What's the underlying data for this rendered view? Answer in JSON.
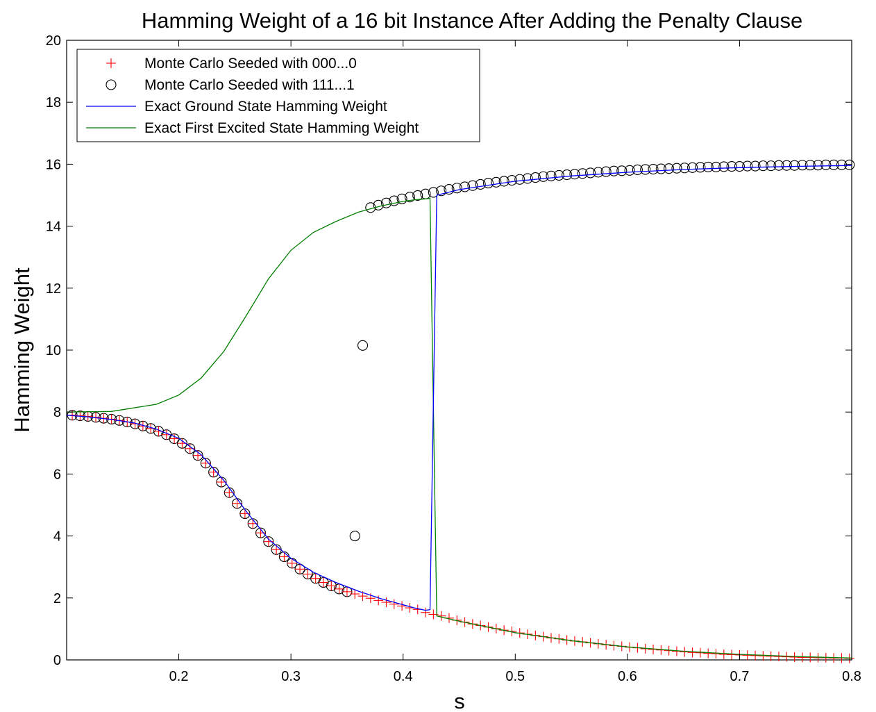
{
  "chart_data": {
    "type": "line",
    "title": "Hamming Weight of a 16 bit Instance After Adding the Penalty Clause",
    "xlabel": "s",
    "ylabel": "Hamming Weight",
    "xlim": [
      0.1,
      0.8
    ],
    "ylim": [
      0,
      20
    ],
    "xticks": [
      0.2,
      0.3,
      0.4,
      0.5,
      0.6,
      0.7,
      0.8
    ],
    "yticks": [
      0,
      2,
      4,
      6,
      8,
      10,
      12,
      14,
      16,
      18,
      20
    ],
    "grid": false,
    "legend_position": "top-left",
    "series": [
      {
        "name": "Monte Carlo Seeded with 000...0",
        "style": "marker-plus",
        "color": "#ff0000",
        "x": [
          0.105,
          0.112,
          0.119,
          0.126,
          0.133,
          0.14,
          0.147,
          0.154,
          0.161,
          0.168,
          0.175,
          0.182,
          0.189,
          0.196,
          0.203,
          0.21,
          0.217,
          0.224,
          0.231,
          0.238,
          0.245,
          0.252,
          0.259,
          0.266,
          0.273,
          0.28,
          0.287,
          0.294,
          0.301,
          0.308,
          0.315,
          0.322,
          0.329,
          0.336,
          0.343,
          0.35,
          0.357,
          0.364,
          0.371,
          0.378,
          0.385,
          0.392,
          0.399,
          0.406,
          0.413,
          0.42,
          0.427,
          0.434,
          0.441,
          0.448,
          0.455,
          0.462,
          0.469,
          0.476,
          0.483,
          0.49,
          0.497,
          0.504,
          0.511,
          0.518,
          0.525,
          0.532,
          0.539,
          0.546,
          0.553,
          0.56,
          0.567,
          0.574,
          0.581,
          0.588,
          0.595,
          0.602,
          0.609,
          0.616,
          0.623,
          0.63,
          0.637,
          0.644,
          0.651,
          0.658,
          0.665,
          0.672,
          0.679,
          0.686,
          0.693,
          0.7,
          0.707,
          0.714,
          0.721,
          0.728,
          0.735,
          0.742,
          0.749,
          0.756,
          0.763,
          0.77,
          0.777,
          0.784,
          0.791,
          0.798
        ],
        "y": [
          7.9,
          7.88,
          7.86,
          7.83,
          7.8,
          7.77,
          7.73,
          7.68,
          7.62,
          7.55,
          7.47,
          7.38,
          7.27,
          7.14,
          6.99,
          6.82,
          6.6,
          6.35,
          6.06,
          5.74,
          5.4,
          5.05,
          4.72,
          4.4,
          4.1,
          3.82,
          3.56,
          3.33,
          3.12,
          2.93,
          2.77,
          2.63,
          2.5,
          2.39,
          2.29,
          2.2,
          2.13,
          2.06,
          1.99,
          1.92,
          1.86,
          1.8,
          1.74,
          1.68,
          1.63,
          1.53,
          1.47,
          1.42,
          1.35,
          1.28,
          1.22,
          1.16,
          1.11,
          1.06,
          1.01,
          0.96,
          0.92,
          0.87,
          0.83,
          0.79,
          0.75,
          0.71,
          0.68,
          0.64,
          0.61,
          0.58,
          0.55,
          0.52,
          0.49,
          0.46,
          0.44,
          0.41,
          0.39,
          0.36,
          0.34,
          0.32,
          0.3,
          0.28,
          0.26,
          0.24,
          0.23,
          0.21,
          0.2,
          0.18,
          0.17,
          0.16,
          0.15,
          0.14,
          0.13,
          0.12,
          0.11,
          0.1,
          0.09,
          0.08,
          0.08,
          0.07,
          0.07,
          0.06,
          0.06,
          0.05
        ]
      },
      {
        "name": "Monte Carlo Seeded with 111...1",
        "style": "marker-circle",
        "color": "#000000",
        "x": [
          0.105,
          0.112,
          0.119,
          0.126,
          0.133,
          0.14,
          0.147,
          0.154,
          0.161,
          0.168,
          0.175,
          0.182,
          0.189,
          0.196,
          0.203,
          0.21,
          0.217,
          0.224,
          0.231,
          0.238,
          0.245,
          0.252,
          0.259,
          0.266,
          0.273,
          0.28,
          0.287,
          0.294,
          0.301,
          0.308,
          0.315,
          0.322,
          0.329,
          0.336,
          0.343,
          0.35,
          0.357,
          0.364,
          0.371,
          0.378,
          0.385,
          0.392,
          0.399,
          0.406,
          0.413,
          0.42,
          0.427,
          0.434,
          0.441,
          0.448,
          0.455,
          0.462,
          0.469,
          0.476,
          0.483,
          0.49,
          0.497,
          0.504,
          0.511,
          0.518,
          0.525,
          0.532,
          0.539,
          0.546,
          0.553,
          0.56,
          0.567,
          0.574,
          0.581,
          0.588,
          0.595,
          0.602,
          0.609,
          0.616,
          0.623,
          0.63,
          0.637,
          0.644,
          0.651,
          0.658,
          0.665,
          0.672,
          0.679,
          0.686,
          0.693,
          0.7,
          0.707,
          0.714,
          0.721,
          0.728,
          0.735,
          0.742,
          0.749,
          0.756,
          0.763,
          0.77,
          0.777,
          0.784,
          0.791,
          0.798
        ],
        "y": [
          7.9,
          7.88,
          7.86,
          7.83,
          7.8,
          7.77,
          7.73,
          7.68,
          7.62,
          7.55,
          7.47,
          7.38,
          7.27,
          7.14,
          6.99,
          6.82,
          6.6,
          6.35,
          6.06,
          5.74,
          5.4,
          5.05,
          4.72,
          4.4,
          4.1,
          3.82,
          3.56,
          3.33,
          3.12,
          2.93,
          2.77,
          2.63,
          2.5,
          2.39,
          2.29,
          2.2,
          4.0,
          10.15,
          14.6,
          14.68,
          14.75,
          14.82,
          14.88,
          14.94,
          14.99,
          15.04,
          15.09,
          15.14,
          15.19,
          15.23,
          15.27,
          15.31,
          15.35,
          15.39,
          15.42,
          15.45,
          15.48,
          15.51,
          15.54,
          15.57,
          15.6,
          15.62,
          15.64,
          15.66,
          15.68,
          15.7,
          15.72,
          15.74,
          15.76,
          15.78,
          15.79,
          15.8,
          15.82,
          15.83,
          15.84,
          15.85,
          15.86,
          15.87,
          15.88,
          15.89,
          15.9,
          15.91,
          15.91,
          15.92,
          15.93,
          15.93,
          15.94,
          15.94,
          15.95,
          15.95,
          15.96,
          15.96,
          15.96,
          15.97,
          15.97,
          15.97,
          15.98,
          15.98,
          15.98,
          15.98
        ]
      },
      {
        "name": "Exact Ground State Hamming Weight",
        "style": "line",
        "color": "#0000ff",
        "x": [
          0.1,
          0.12,
          0.14,
          0.16,
          0.18,
          0.2,
          0.22,
          0.24,
          0.26,
          0.28,
          0.3,
          0.32,
          0.34,
          0.36,
          0.38,
          0.4,
          0.41,
          0.42,
          0.424,
          0.43,
          0.45,
          0.5,
          0.55,
          0.6,
          0.65,
          0.7,
          0.75,
          0.8
        ],
        "y": [
          7.9,
          7.84,
          7.76,
          7.65,
          7.45,
          7.15,
          6.62,
          5.8,
          4.8,
          3.9,
          3.28,
          2.83,
          2.5,
          2.22,
          1.98,
          1.78,
          1.68,
          1.6,
          1.62,
          15.0,
          15.18,
          15.45,
          15.62,
          15.74,
          15.83,
          15.89,
          15.93,
          15.96
        ]
      },
      {
        "name": "Exact First Excited State Hamming Weight",
        "style": "line",
        "color": "#007f00",
        "x": [
          0.1,
          0.14,
          0.18,
          0.2,
          0.22,
          0.24,
          0.26,
          0.28,
          0.3,
          0.32,
          0.34,
          0.36,
          0.38,
          0.4,
          0.41,
          0.42,
          0.424,
          0.43,
          0.45,
          0.5,
          0.55,
          0.6,
          0.65,
          0.7,
          0.75,
          0.8
        ],
        "y": [
          8.0,
          8.02,
          8.25,
          8.55,
          9.1,
          9.95,
          11.1,
          12.3,
          13.22,
          13.8,
          14.15,
          14.45,
          14.65,
          14.8,
          14.85,
          14.88,
          14.9,
          1.42,
          1.25,
          0.88,
          0.62,
          0.42,
          0.28,
          0.18,
          0.11,
          0.06
        ]
      }
    ]
  }
}
